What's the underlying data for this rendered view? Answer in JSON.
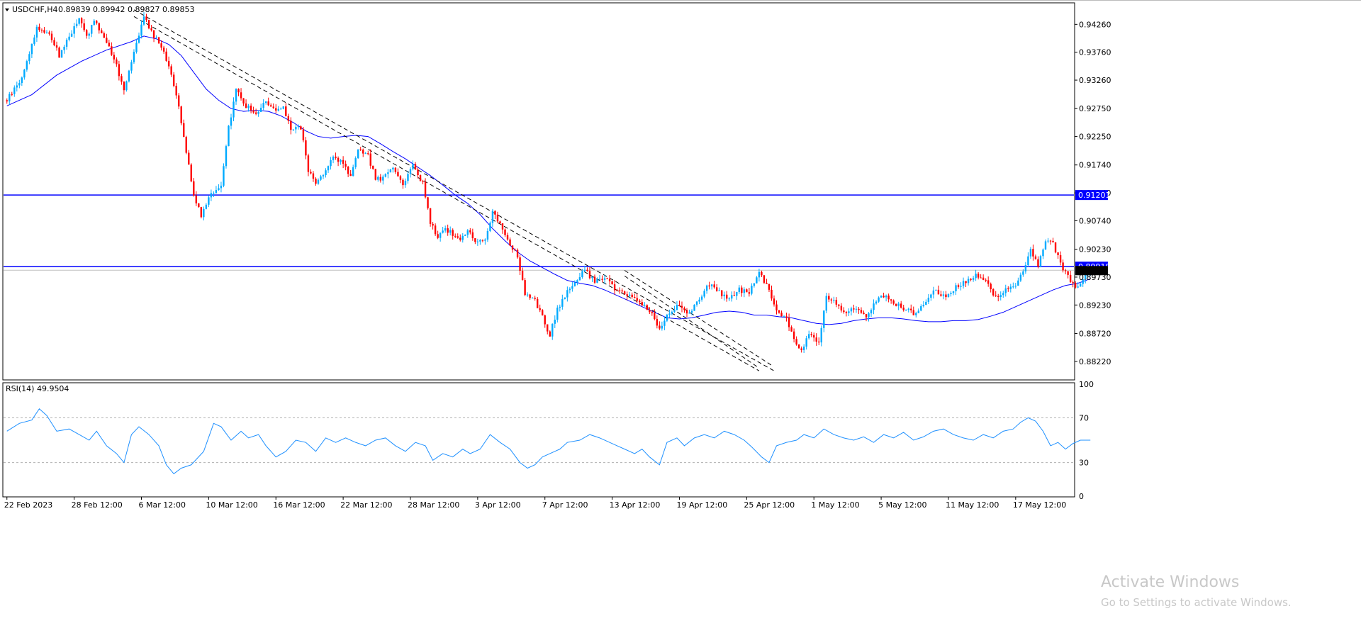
{
  "chart_data": {
    "type": "candlestick",
    "symbol_header": "USDCHF,H4",
    "ohlc_readout": "0.89839 0.89942 0.89827 0.89853",
    "price_axis_labels": [
      "0.94260",
      "0.93760",
      "0.93260",
      "0.92750",
      "0.92250",
      "0.91740",
      "0.91240",
      "0.90740",
      "0.90230",
      "0.89730",
      "0.89230",
      "0.88720",
      "0.88220"
    ],
    "ylim": [
      0.879,
      0.9462
    ],
    "horizontal_levels": [
      {
        "value": 0.91201,
        "label": "0.91201",
        "color": "#0000ff"
      },
      {
        "value": 0.89918,
        "label": "0.89918",
        "color": "#0000ff"
      }
    ],
    "bid_line": 0.89853,
    "candle_colors": {
      "up": "#00aaff",
      "down": "#ff0000",
      "ma": "#0000ff",
      "trendline": "#000000"
    },
    "close_path": [
      [
        0,
        0.929
      ],
      [
        6,
        0.933
      ],
      [
        12,
        0.942
      ],
      [
        17,
        0.941
      ],
      [
        21,
        0.937
      ],
      [
        25,
        0.9405
      ],
      [
        29,
        0.9435
      ],
      [
        32,
        0.9405
      ],
      [
        35,
        0.943
      ],
      [
        39,
        0.9405
      ],
      [
        43,
        0.9365
      ],
      [
        47,
        0.931
      ],
      [
        51,
        0.938
      ],
      [
        55,
        0.944
      ],
      [
        59,
        0.9405
      ],
      [
        63,
        0.938
      ],
      [
        68,
        0.93
      ],
      [
        72,
        0.92
      ],
      [
        75,
        0.912
      ],
      [
        78,
        0.9085
      ],
      [
        82,
        0.9125
      ],
      [
        86,
        0.9135
      ],
      [
        89,
        0.924
      ],
      [
        92,
        0.931
      ],
      [
        96,
        0.928
      ],
      [
        100,
        0.9265
      ],
      [
        104,
        0.929
      ],
      [
        108,
        0.927
      ],
      [
        111,
        0.9275
      ],
      [
        114,
        0.924
      ],
      [
        118,
        0.924
      ],
      [
        121,
        0.9165
      ],
      [
        124,
        0.914
      ],
      [
        127,
        0.916
      ],
      [
        131,
        0.9185
      ],
      [
        135,
        0.918
      ],
      [
        138,
        0.915
      ],
      [
        141,
        0.92
      ],
      [
        145,
        0.919
      ],
      [
        148,
        0.915
      ],
      [
        151,
        0.915
      ],
      [
        155,
        0.917
      ],
      [
        159,
        0.914
      ],
      [
        163,
        0.9175
      ],
      [
        167,
        0.914
      ],
      [
        170,
        0.907
      ],
      [
        173,
        0.9045
      ],
      [
        176,
        0.906
      ],
      [
        179,
        0.905
      ],
      [
        182,
        0.904
      ],
      [
        185,
        0.9055
      ],
      [
        189,
        0.9035
      ],
      [
        192,
        0.904
      ],
      [
        195,
        0.909
      ],
      [
        198,
        0.907
      ],
      [
        201,
        0.904
      ],
      [
        205,
        0.901
      ],
      [
        208,
        0.894
      ],
      [
        212,
        0.893
      ],
      [
        215,
        0.89
      ],
      [
        218,
        0.887
      ],
      [
        221,
        0.8915
      ],
      [
        224,
        0.894
      ],
      [
        228,
        0.8965
      ],
      [
        232,
        0.8985
      ],
      [
        236,
        0.8965
      ],
      [
        240,
        0.8975
      ],
      [
        244,
        0.895
      ],
      [
        248,
        0.8945
      ],
      [
        252,
        0.8935
      ],
      [
        256,
        0.892
      ],
      [
        259,
        0.8905
      ],
      [
        262,
        0.888
      ],
      [
        266,
        0.891
      ],
      [
        270,
        0.8925
      ],
      [
        274,
        0.8905
      ],
      [
        278,
        0.8935
      ],
      [
        282,
        0.896
      ],
      [
        286,
        0.8945
      ],
      [
        290,
        0.8935
      ],
      [
        294,
        0.895
      ],
      [
        298,
        0.8945
      ],
      [
        302,
        0.898
      ],
      [
        306,
        0.895
      ],
      [
        309,
        0.891
      ],
      [
        313,
        0.89
      ],
      [
        316,
        0.886
      ],
      [
        319,
        0.884
      ],
      [
        322,
        0.887
      ],
      [
        326,
        0.8855
      ],
      [
        329,
        0.894
      ],
      [
        333,
        0.8925
      ],
      [
        337,
        0.891
      ],
      [
        341,
        0.892
      ],
      [
        345,
        0.89
      ],
      [
        349,
        0.893
      ],
      [
        353,
        0.894
      ],
      [
        357,
        0.8925
      ],
      [
        361,
        0.8915
      ],
      [
        365,
        0.8905
      ],
      [
        369,
        0.893
      ],
      [
        373,
        0.895
      ],
      [
        377,
        0.8935
      ],
      [
        381,
        0.8955
      ],
      [
        385,
        0.8965
      ],
      [
        389,
        0.8975
      ],
      [
        393,
        0.8965
      ],
      [
        397,
        0.8935
      ],
      [
        401,
        0.895
      ],
      [
        405,
        0.896
      ],
      [
        408,
        0.8985
      ],
      [
        411,
        0.902
      ],
      [
        414,
        0.8995
      ],
      [
        417,
        0.904
      ],
      [
        420,
        0.9035
      ],
      [
        423,
        0.8995
      ],
      [
        426,
        0.8975
      ],
      [
        429,
        0.8955
      ],
      [
        432,
        0.897
      ],
      [
        435,
        0.8985
      ]
    ],
    "ma_path": [
      [
        0,
        0.928
      ],
      [
        10,
        0.93
      ],
      [
        20,
        0.9335
      ],
      [
        30,
        0.936
      ],
      [
        40,
        0.938
      ],
      [
        50,
        0.9395
      ],
      [
        55,
        0.9405
      ],
      [
        60,
        0.94
      ],
      [
        65,
        0.939
      ],
      [
        70,
        0.937
      ],
      [
        75,
        0.934
      ],
      [
        80,
        0.931
      ],
      [
        85,
        0.929
      ],
      [
        90,
        0.9275
      ],
      [
        95,
        0.927
      ],
      [
        100,
        0.9272
      ],
      [
        105,
        0.927
      ],
      [
        110,
        0.9262
      ],
      [
        115,
        0.925
      ],
      [
        120,
        0.9235
      ],
      [
        125,
        0.9225
      ],
      [
        130,
        0.9222
      ],
      [
        135,
        0.9225
      ],
      [
        140,
        0.9227
      ],
      [
        145,
        0.9225
      ],
      [
        150,
        0.9212
      ],
      [
        155,
        0.9198
      ],
      [
        160,
        0.9185
      ],
      [
        165,
        0.917
      ],
      [
        170,
        0.9155
      ],
      [
        175,
        0.9138
      ],
      [
        180,
        0.912
      ],
      [
        185,
        0.9105
      ],
      [
        190,
        0.9085
      ],
      [
        195,
        0.906
      ],
      [
        200,
        0.9038
      ],
      [
        205,
        0.9018
      ],
      [
        210,
        0.9002
      ],
      [
        215,
        0.899
      ],
      [
        220,
        0.8978
      ],
      [
        225,
        0.8967
      ],
      [
        230,
        0.8962
      ],
      [
        235,
        0.8958
      ],
      [
        240,
        0.895
      ],
      [
        245,
        0.894
      ],
      [
        250,
        0.893
      ],
      [
        255,
        0.892
      ],
      [
        260,
        0.891
      ],
      [
        265,
        0.89
      ],
      [
        270,
        0.8898
      ],
      [
        275,
        0.89
      ],
      [
        280,
        0.8905
      ],
      [
        285,
        0.891
      ],
      [
        290,
        0.8912
      ],
      [
        295,
        0.891
      ],
      [
        300,
        0.8905
      ],
      [
        305,
        0.8905
      ],
      [
        310,
        0.8902
      ],
      [
        315,
        0.89
      ],
      [
        320,
        0.8895
      ],
      [
        325,
        0.889
      ],
      [
        330,
        0.8888
      ],
      [
        335,
        0.889
      ],
      [
        340,
        0.8895
      ],
      [
        345,
        0.8898
      ],
      [
        350,
        0.89
      ],
      [
        355,
        0.89
      ],
      [
        360,
        0.8898
      ],
      [
        365,
        0.8895
      ],
      [
        370,
        0.8893
      ],
      [
        375,
        0.8893
      ],
      [
        380,
        0.8895
      ],
      [
        385,
        0.8895
      ],
      [
        390,
        0.8897
      ],
      [
        395,
        0.8903
      ],
      [
        400,
        0.891
      ],
      [
        405,
        0.892
      ],
      [
        410,
        0.893
      ],
      [
        415,
        0.894
      ],
      [
        420,
        0.895
      ],
      [
        425,
        0.8958
      ],
      [
        430,
        0.8962
      ],
      [
        435,
        0.897
      ]
    ],
    "trendlines": [
      {
        "from": [
          51,
          0.9452
        ],
        "to": [
          308,
          0.8805
        ]
      },
      {
        "from": [
          51,
          0.944
        ],
        "to": [
          302,
          0.8805
        ]
      },
      {
        "from": [
          248,
          0.8985
        ],
        "to": [
          307,
          0.8815
        ]
      },
      {
        "from": [
          248,
          0.8975
        ],
        "to": [
          302,
          0.881
        ]
      }
    ],
    "rsi": {
      "label": "RSI(14) 49.9504",
      "axis_labels": [
        "100",
        "70",
        "30",
        "0"
      ],
      "ylim": [
        0,
        100
      ],
      "levels": [
        70,
        30
      ],
      "path": [
        [
          0,
          58
        ],
        [
          5,
          65
        ],
        [
          10,
          68
        ],
        [
          13,
          78
        ],
        [
          16,
          72
        ],
        [
          20,
          58
        ],
        [
          25,
          60
        ],
        [
          29,
          55
        ],
        [
          33,
          50
        ],
        [
          36,
          58
        ],
        [
          40,
          45
        ],
        [
          44,
          38
        ],
        [
          47,
          30
        ],
        [
          50,
          55
        ],
        [
          53,
          62
        ],
        [
          57,
          55
        ],
        [
          61,
          45
        ],
        [
          64,
          28
        ],
        [
          67,
          20
        ],
        [
          70,
          25
        ],
        [
          74,
          28
        ],
        [
          79,
          40
        ],
        [
          83,
          65
        ],
        [
          86,
          62
        ],
        [
          90,
          50
        ],
        [
          94,
          58
        ],
        [
          97,
          52
        ],
        [
          101,
          55
        ],
        [
          104,
          45
        ],
        [
          108,
          35
        ],
        [
          112,
          40
        ],
        [
          116,
          50
        ],
        [
          120,
          48
        ],
        [
          124,
          40
        ],
        [
          128,
          52
        ],
        [
          132,
          48
        ],
        [
          136,
          52
        ],
        [
          140,
          48
        ],
        [
          144,
          45
        ],
        [
          148,
          50
        ],
        [
          152,
          52
        ],
        [
          156,
          45
        ],
        [
          160,
          40
        ],
        [
          164,
          48
        ],
        [
          168,
          45
        ],
        [
          171,
          32
        ],
        [
          175,
          38
        ],
        [
          179,
          35
        ],
        [
          183,
          42
        ],
        [
          186,
          38
        ],
        [
          190,
          42
        ],
        [
          194,
          55
        ],
        [
          198,
          48
        ],
        [
          202,
          42
        ],
        [
          206,
          30
        ],
        [
          209,
          25
        ],
        [
          212,
          28
        ],
        [
          215,
          35
        ],
        [
          218,
          38
        ],
        [
          222,
          42
        ],
        [
          225,
          48
        ],
        [
          230,
          50
        ],
        [
          234,
          55
        ],
        [
          238,
          52
        ],
        [
          242,
          48
        ],
        [
          245,
          45
        ],
        [
          248,
          42
        ],
        [
          252,
          38
        ],
        [
          255,
          42
        ],
        [
          258,
          35
        ],
        [
          262,
          28
        ],
        [
          265,
          48
        ],
        [
          269,
          52
        ],
        [
          272,
          45
        ],
        [
          276,
          52
        ],
        [
          280,
          55
        ],
        [
          284,
          52
        ],
        [
          288,
          58
        ],
        [
          292,
          55
        ],
        [
          296,
          50
        ],
        [
          299,
          44
        ],
        [
          303,
          35
        ],
        [
          306,
          30
        ],
        [
          309,
          45
        ],
        [
          313,
          48
        ],
        [
          317,
          50
        ],
        [
          320,
          55
        ],
        [
          324,
          52
        ],
        [
          328,
          60
        ],
        [
          332,
          55
        ],
        [
          336,
          52
        ],
        [
          340,
          50
        ],
        [
          344,
          53
        ],
        [
          348,
          48
        ],
        [
          352,
          55
        ],
        [
          356,
          52
        ],
        [
          360,
          57
        ],
        [
          364,
          50
        ],
        [
          368,
          53
        ],
        [
          372,
          58
        ],
        [
          376,
          60
        ],
        [
          380,
          55
        ],
        [
          384,
          52
        ],
        [
          388,
          50
        ],
        [
          392,
          55
        ],
        [
          396,
          52
        ],
        [
          400,
          58
        ],
        [
          404,
          60
        ],
        [
          407,
          66
        ],
        [
          410,
          70
        ],
        [
          413,
          67
        ],
        [
          416,
          58
        ],
        [
          419,
          45
        ],
        [
          422,
          48
        ],
        [
          425,
          42
        ],
        [
          428,
          47
        ],
        [
          431,
          50
        ],
        [
          435,
          50
        ]
      ]
    },
    "x_tick_labels": [
      "22 Feb 2023",
      "28 Feb 12:00",
      "6 Mar 12:00",
      "10 Mar 12:00",
      "16 Mar 12:00",
      "22 Mar 12:00",
      "28 Mar 12:00",
      "3 Apr 12:00",
      "7 Apr 12:00",
      "13 Apr 12:00",
      "19 Apr 12:00",
      "25 Apr 12:00",
      "1 May 12:00",
      "5 May 12:00",
      "11 May 12:00",
      "17 May 12:00"
    ],
    "x_tick_index": [
      0,
      27,
      54,
      81,
      108,
      135,
      162,
      189,
      216,
      243,
      270,
      297,
      324,
      351,
      378,
      405
    ],
    "watermark": {
      "line1": "Activate Windows",
      "line2": "Go to Settings to activate Windows."
    }
  }
}
